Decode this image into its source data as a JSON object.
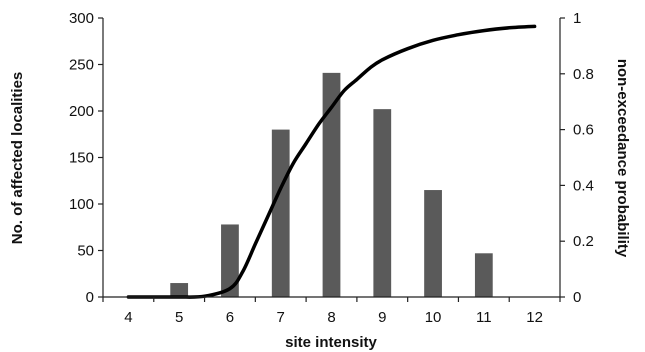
{
  "chart_data": {
    "type": "bar",
    "categories": [
      "4",
      "5",
      "6",
      "7",
      "8",
      "9",
      "10",
      "11",
      "12"
    ],
    "x": [
      4,
      5,
      6,
      7,
      8,
      9,
      10,
      11,
      12
    ],
    "series": [
      {
        "type": "bar",
        "axis": "left",
        "color": "#5a5a5a",
        "values": [
          0,
          15,
          78,
          180,
          241,
          202,
          115,
          47,
          0
        ]
      },
      {
        "type": "line",
        "axis": "right",
        "color": "#000000",
        "x": [
          4,
          4.5,
          5,
          5.5,
          6,
          6.25,
          6.5,
          6.75,
          7,
          7.25,
          7.5,
          7.75,
          8,
          8.25,
          8.5,
          8.75,
          9,
          9.5,
          10,
          10.5,
          11,
          11.5,
          12
        ],
        "values": [
          0,
          0,
          0,
          0.003,
          0.03,
          0.09,
          0.19,
          0.29,
          0.39,
          0.48,
          0.55,
          0.62,
          0.68,
          0.74,
          0.78,
          0.82,
          0.85,
          0.89,
          0.92,
          0.94,
          0.955,
          0.965,
          0.97
        ]
      }
    ],
    "xlabel": "site intensity",
    "ylabel": "No. of affected localities",
    "y2label": "non-exceedance probability",
    "xlim": [
      3.5,
      12.5
    ],
    "ylim": [
      0,
      300
    ],
    "y2lim": [
      0,
      1
    ],
    "yticks": [
      "0",
      "50",
      "100",
      "150",
      "200",
      "250",
      "300"
    ],
    "y2ticks": [
      "0",
      "0.2",
      "0.4",
      "0.6",
      "0.8",
      "1"
    ],
    "grid": false,
    "legend": "none"
  }
}
